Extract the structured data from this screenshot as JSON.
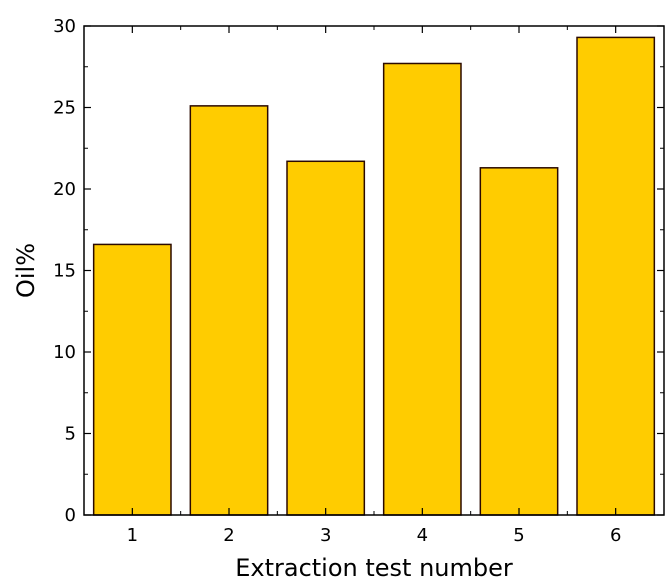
{
  "chart_data": {
    "type": "bar",
    "title": "",
    "xlabel": "Extraction test number",
    "ylabel": "Oil%",
    "categories": [
      "1",
      "2",
      "3",
      "4",
      "5",
      "6"
    ],
    "values": [
      16.6,
      25.1,
      21.7,
      27.7,
      21.3,
      29.3
    ],
    "ylim": [
      0,
      30
    ],
    "yticks": [
      "0",
      "5",
      "10",
      "15",
      "20",
      "25",
      "30"
    ],
    "grid": false,
    "legend": "none",
    "bar_color": "#FFCC00",
    "bar_edge_color": "#2B0A00"
  }
}
